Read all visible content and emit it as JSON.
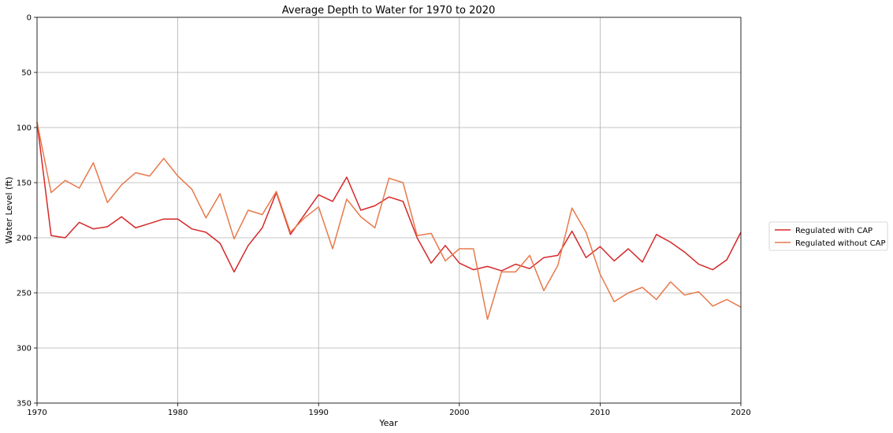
{
  "chart_data": {
    "type": "line",
    "title": "Average Depth to Water for 1970 to 2020",
    "xlabel": "Year",
    "ylabel": "Water Level (ft)",
    "xlim": [
      1970,
      2020
    ],
    "ylim": [
      0,
      350
    ],
    "y_inverted": true,
    "grid": true,
    "legend_position": "right-center",
    "x_ticks": [
      "1970",
      "1980",
      "1990",
      "2000",
      "2010",
      "2020"
    ],
    "y_ticks": [
      "0",
      "50",
      "100",
      "150",
      "200",
      "250",
      "300",
      "350"
    ],
    "x": [
      1970,
      1971,
      1972,
      1973,
      1974,
      1975,
      1976,
      1977,
      1978,
      1979,
      1980,
      1981,
      1982,
      1983,
      1984,
      1985,
      1986,
      1987,
      1988,
      1989,
      1990,
      1991,
      1992,
      1993,
      1994,
      1995,
      1996,
      1997,
      1998,
      1999,
      2000,
      2001,
      2002,
      2003,
      2004,
      2005,
      2006,
      2007,
      2008,
      2009,
      2010,
      2011,
      2012,
      2013,
      2014,
      2015,
      2016,
      2017,
      2018,
      2019,
      2020
    ],
    "series": [
      {
        "name": "Regulated with CAP",
        "color": "#d62728",
        "values": [
          95,
          198,
          200,
          186,
          192,
          190,
          181,
          191,
          187,
          183,
          183,
          192,
          195,
          205,
          231,
          207,
          191,
          159,
          197,
          179,
          161,
          167,
          145,
          175,
          171,
          163,
          167,
          200,
          223,
          207,
          223,
          229,
          226,
          230,
          224,
          228,
          218,
          216,
          194,
          218,
          208,
          221,
          210,
          222,
          197,
          204,
          213,
          224,
          229,
          220,
          195
        ]
      },
      {
        "name": "Regulated without CAP",
        "color": "#e8794a",
        "values": [
          95,
          159,
          148,
          155,
          132,
          168,
          152,
          141,
          144,
          128,
          144,
          156,
          182,
          160,
          201,
          175,
          179,
          158,
          195,
          182,
          172,
          210,
          165,
          181,
          191,
          146,
          150,
          198,
          196,
          221,
          210,
          210,
          274,
          231,
          231,
          216,
          248,
          225,
          173,
          195,
          233,
          258,
          250,
          245,
          256,
          240,
          252,
          249,
          262,
          256,
          263
        ]
      }
    ]
  }
}
